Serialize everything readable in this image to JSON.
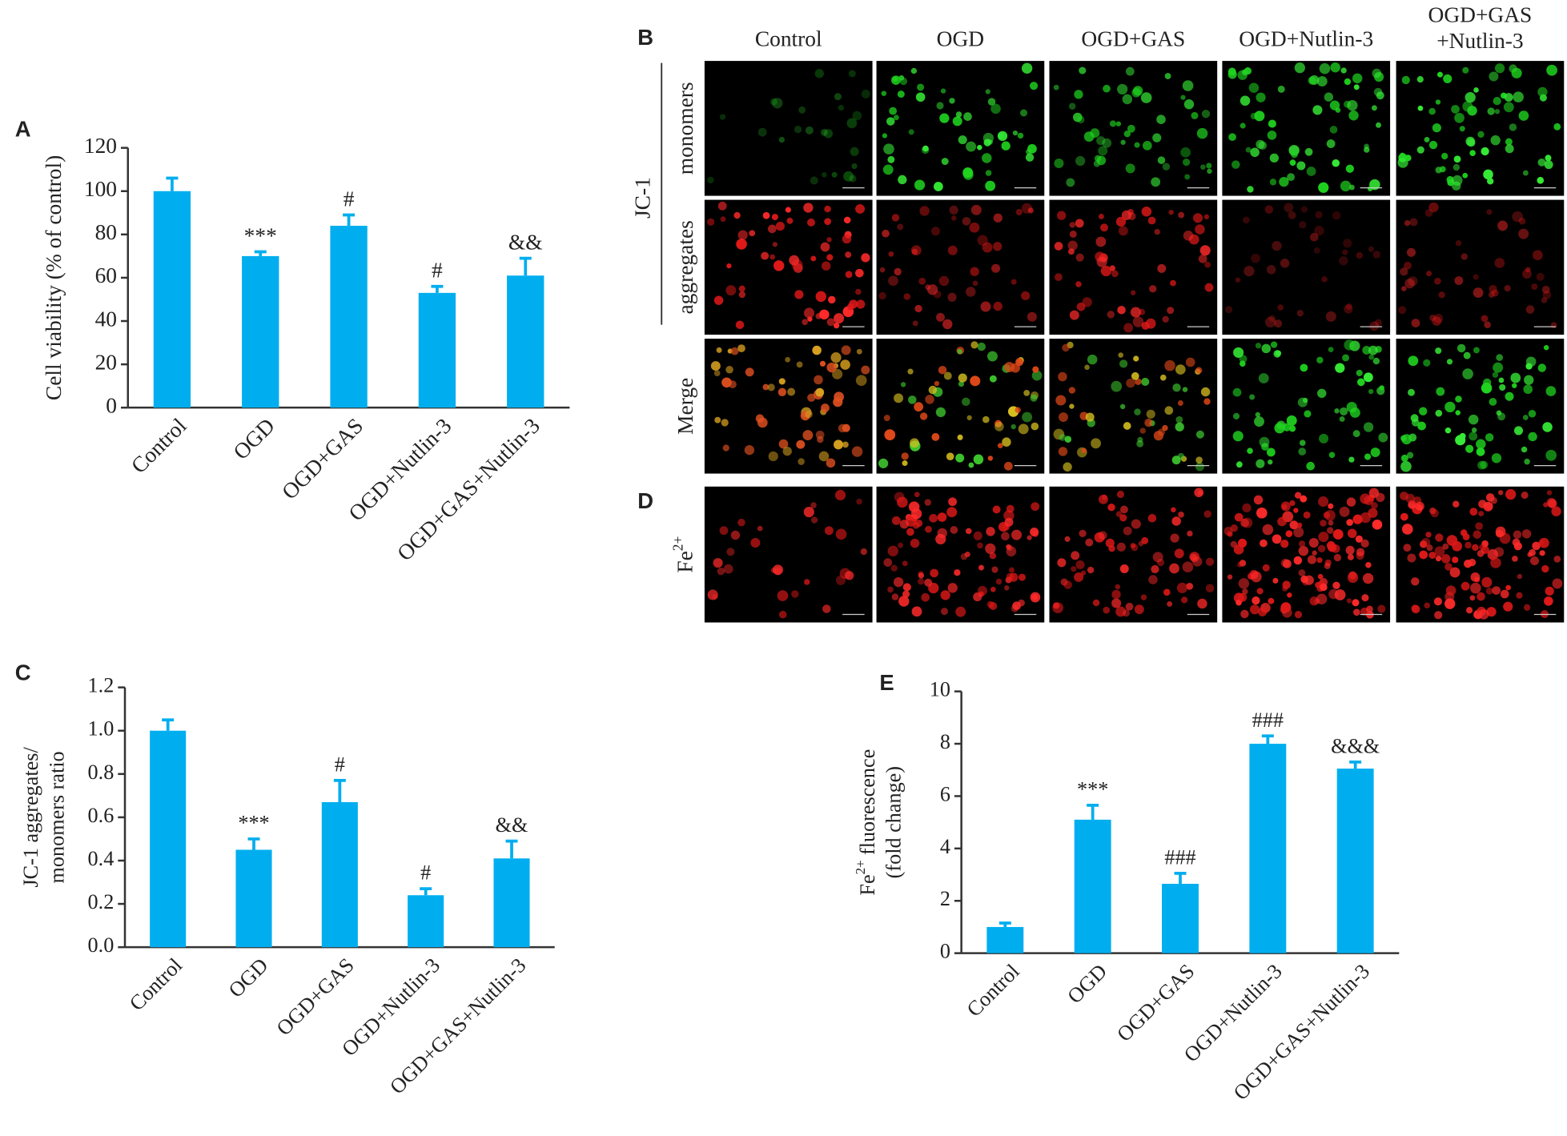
{
  "chart_data": [
    {
      "type": "bar",
      "panel": "A",
      "categories": [
        "Control",
        "OGD",
        "OGD+GAS",
        "OGD+Nutlin-3",
        "OGD+GAS+Nutlin-3"
      ],
      "values": [
        100,
        70,
        84,
        53,
        61
      ],
      "errors": [
        6,
        2,
        5,
        3,
        8
      ],
      "annotations": [
        null,
        "***",
        "#",
        "#",
        "&&"
      ],
      "ylim": [
        0,
        120
      ],
      "yticks": [
        0,
        20,
        40,
        60,
        80,
        100,
        120
      ],
      "ylabel": "Cell viability (% of control)",
      "color": "#00aeef"
    },
    {
      "type": "bar",
      "panel": "C",
      "categories": [
        "Control",
        "OGD",
        "OGD+GAS",
        "OGD+Nutlin-3",
        "OGD+GAS+Nutlin-3"
      ],
      "values": [
        1.0,
        0.45,
        0.67,
        0.24,
        0.41
      ],
      "errors": [
        0.05,
        0.05,
        0.1,
        0.03,
        0.08
      ],
      "annotations": [
        null,
        "***",
        "#",
        "#",
        "&&"
      ],
      "ylim": [
        0,
        1.2
      ],
      "yticks": [
        {
          "value": 0,
          "label": "0.0"
        },
        0.2,
        0.4,
        0.6,
        0.8,
        {
          "value": 1,
          "label": "1.0"
        },
        1.2
      ],
      "ylabel": [
        "JC-1 aggregates/",
        "monomers ratio"
      ],
      "color": "#00aeef"
    },
    {
      "type": "bar",
      "panel": "E",
      "categories": [
        "Control",
        "OGD",
        "OGD+GAS",
        "OGD+Nutlin-3",
        "OGD+GAS+Nutlin-3"
      ],
      "values": [
        1.0,
        5.1,
        2.65,
        8.0,
        7.05
      ],
      "errors": [
        0.15,
        0.55,
        0.4,
        0.3,
        0.25
      ],
      "annotations": [
        null,
        "***",
        "###",
        "###",
        "&&&"
      ],
      "ylim": [
        0,
        10
      ],
      "yticks": [
        0,
        2,
        4,
        6,
        8,
        10
      ],
      "ylabel": [
        [
          "Fe",
          "2+",
          "fluorescence"
        ],
        "(fold change)"
      ],
      "color": "#00aeef"
    }
  ],
  "panel_b": {
    "label": "B",
    "columns": [
      "Control",
      "OGD",
      "OGD+GAS",
      "OGD+Nutlin-3",
      [
        "OGD+GAS",
        "+Nutlin-3"
      ]
    ],
    "group_label": "JC-1",
    "rows": [
      "monomers",
      "aggregates",
      "Merge"
    ]
  },
  "panel_d": {
    "label": "D",
    "row": [
      "Fe",
      "2+"
    ]
  }
}
